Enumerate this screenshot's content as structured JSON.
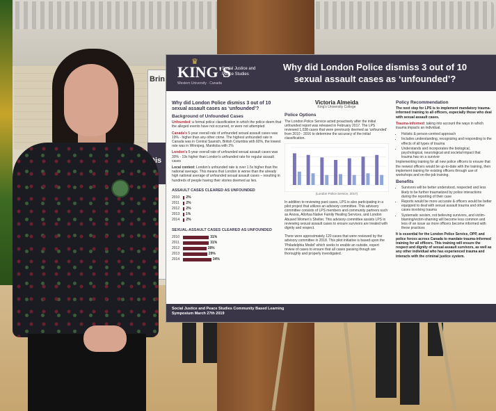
{
  "side_poster": {
    "top_text": "Brin",
    "mid_text": "Dis"
  },
  "poster": {
    "logo": "KING'S",
    "logo_sub": "Western University · Canada",
    "department": "Social Justice and Peace Studies",
    "title": "Why did London Police dismiss 3 out of 10 sexual assault cases as ‘unfounded’?",
    "left": {
      "heading": "Why did London Police dismiss 3 out of 10 sexual assault cases as ‘unfounded’?",
      "background_heading": "Background of Unfounded Cases",
      "p1_term": "Unfounded",
      "p1_text": ": a formal police classification in which the police deem that the alleged events have not occurred, or were not attempted",
      "p2_term": "Canada's",
      "p2_text": " 5-year overall rate of unfounded sexual assault cases was 19% - higher than any other crime. The highest unfounded rate in Canada was in Central Saanich, British Columbia with 60%, the lowest rate was in Winnipeg, Manitoba with 2%",
      "p3_term": "London's",
      "p3_text": " 5-year overall rate of unfounded sexual assault cases was 30% - 19x higher than London's unfounded rate for regular assault cases",
      "p4_term": "Local context",
      "p4_text": ": London's unfounded rate is over 1.5x higher than the national average. This means that London is worse than the already high national average of unfounded sexual assault cases – resulting in hundreds of people having their stories deemed as lies.",
      "assault_title": "ASSAULT CASES CLEARED AS UNFOUNDED",
      "sexual_title": "SEXUAL-ASSAULT CASES CLEARED AS UNFOUNDED"
    },
    "middle": {
      "author": "Victoria Almeida",
      "institution": "King's University College",
      "policy_heading": "Police Options",
      "policy_text": "The London Police Service acted proactively after the initial unfounded report was released in February 2017. The LPS reviewed 1,038 cases that were previously deemed as 'unfounded' from 2010 - 2016 to determine the accuracy of the initial classification.",
      "chart_caption": "(London Police Service, 2017)",
      "pilot_text": "In addition to reviewing past cases, LPS is also participating in a pilot project that utilizes an advisory committee. This advisory committee consists of LPS members and community partners such as Anova, Atlohsa Native Family Healing Services, and London Abused Women's Shelter. This advisory committee assists LPS in reviewing sexual assault cases to ensure survivors are treated with dignity and respect.",
      "cases_text": "There were approximately 120 cases that were reviewed by the advisory committee in 2018. This pilot initiative is based upon the 'Philadelphia Model' which seeks to enable an outside, expert review of cases to ensure that all cases passing though are thoroughly and properly investigated."
    },
    "right": {
      "heading": "Policy Recommendation",
      "intro": "The next step for LPS is to implement mandatory trauma-informed training to all officers, especially those who deal with sexual assault cases.",
      "ti_term": "Trauma-informed",
      "ti_text": ": taking into account the ways in which trauma impacts an individual.",
      "bullets": [
        "Holistic & person-centred approach",
        "Includes understanding, recognizing and responding to the effects of all types of trauma",
        "Understands and incorporates the biological, psychological, neurological and societal impact that trauma has on a survivor"
      ],
      "impl_text": "Implementing training for all new police officers to ensure that the newest officers would be up-to-date with the training, then implement training for existing officers through use of workshops and on-the-job training.",
      "benefits_heading": "Benefits",
      "benefits": [
        "Survivors will be better understood, respected and less likely to be further traumatized by police interactions during the reporting of their case",
        "Reports would be more accurate & officers would be better equipped to deal with sexual assault trauma and other cases involving trauma",
        "Systematic sexism, not believing survivors, and victim-blaming/victim-shaming will become less common and less of an issue as more officers become informed with these practices"
      ],
      "conclusion": "It is essential for the London Police Service, OPP, and police forces across Canada to mandate trauma-informed training for all officers. This training will ensure the respect and dignity of sexual assault survivors, as well as any other individual who has experienced trauma and interacts with the criminal justice system."
    },
    "footer": "Social Justice and Peace Studies Community Based Learning Symposium  March 27th 2019"
  },
  "chart_data": [
    {
      "type": "bar",
      "title": "ASSAULT CASES CLEARED AS UNFOUNDED",
      "categories": [
        "2010",
        "2011",
        "2012",
        "2013",
        "2014"
      ],
      "values": [
        2,
        2,
        2,
        1,
        2
      ],
      "value_suffix": "%",
      "xlim": [
        0,
        40
      ]
    },
    {
      "type": "bar",
      "title": "SEXUAL-ASSAULT CASES CLEARED AS UNFOUNDED",
      "categories": [
        "2010",
        "2011",
        "2012",
        "2013",
        "2014"
      ],
      "values": [
        31,
        31,
        28,
        29,
        34
      ],
      "value_suffix": "%",
      "xlim": [
        0,
        40
      ]
    },
    {
      "type": "bar",
      "title": "",
      "categories": [
        "2010",
        "2011",
        "2012",
        "2013",
        "2014",
        "2015",
        "2016"
      ],
      "series": [
        {
          "values": [
            38,
            36,
            33,
            30,
            32,
            34,
            36
          ],
          "color": "#7a74b8"
        },
        {
          "values": [
            16,
            14,
            12,
            13,
            12,
            14,
            12
          ],
          "color": "#8fa6d8"
        }
      ],
      "ylim": [
        0,
        45
      ]
    }
  ]
}
